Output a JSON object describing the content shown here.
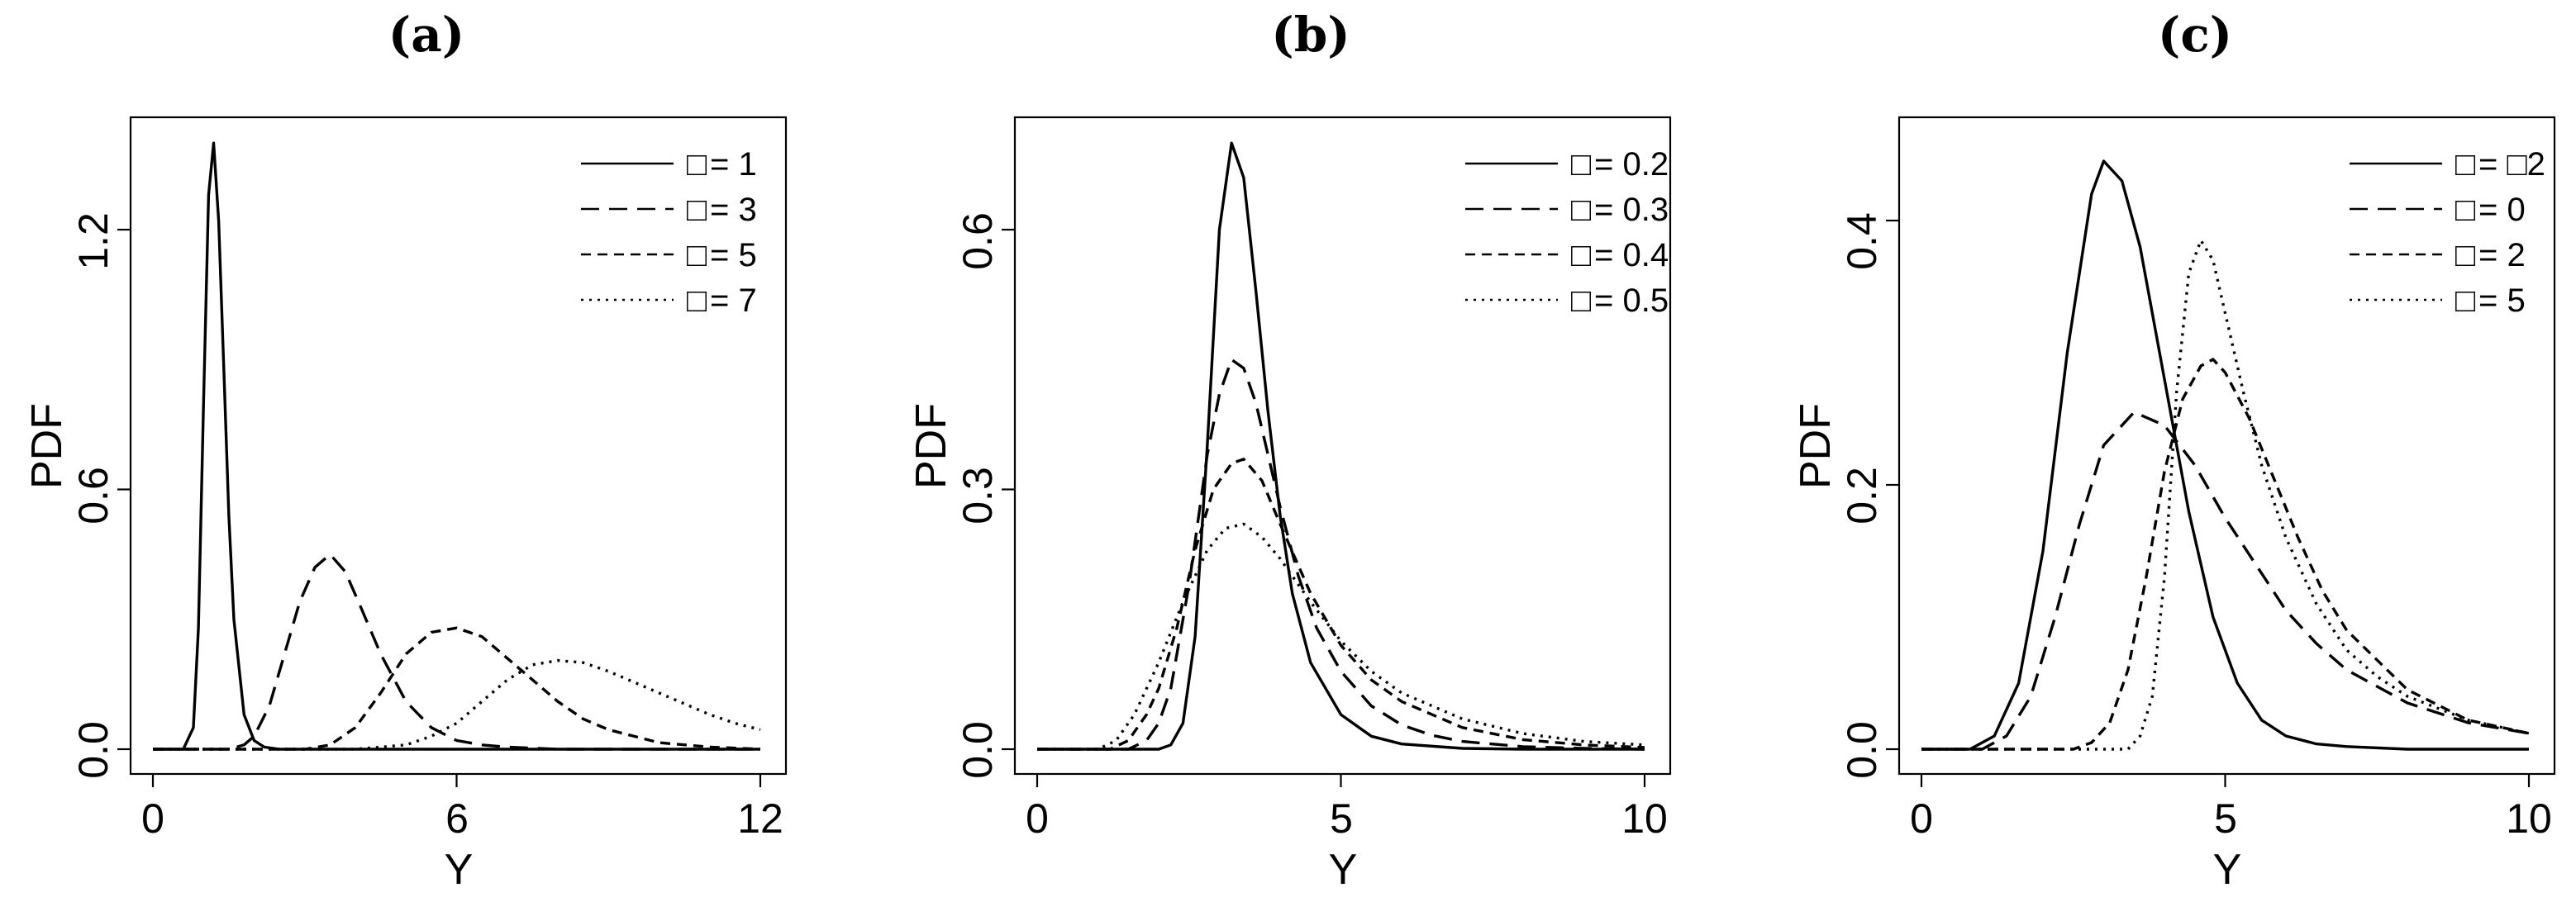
{
  "chart_data": [
    {
      "type": "line",
      "panel_label": "(a)",
      "xlabel": "Y",
      "ylabel": "PDF",
      "xlim": [
        0,
        12
      ],
      "ylim": [
        0,
        1.45
      ],
      "xticks": [
        "0",
        "6",
        "12"
      ],
      "yticks": [
        "0.0",
        "0.6",
        "1.2"
      ],
      "legend_position": "top-right",
      "series": [
        {
          "name": "= 1",
          "symbol": "□",
          "style": "solid",
          "x": [
            0,
            0.6,
            0.8,
            0.9,
            1.0,
            1.1,
            1.2,
            1.3,
            1.4,
            1.5,
            1.6,
            1.8,
            2.0,
            2.2,
            2.5,
            3.0,
            12
          ],
          "y": [
            0,
            0,
            0.05,
            0.28,
            0.8,
            1.28,
            1.4,
            1.22,
            0.88,
            0.54,
            0.3,
            0.08,
            0.02,
            0.005,
            0,
            0,
            0
          ]
        },
        {
          "name": "= 3",
          "symbol": "□",
          "style": "dashed",
          "x": [
            0,
            1.5,
            1.8,
            2.0,
            2.3,
            2.6,
            2.9,
            3.2,
            3.5,
            3.8,
            4.1,
            4.5,
            5.0,
            5.5,
            6.0,
            6.5,
            7.0,
            8.0,
            12
          ],
          "y": [
            0,
            0,
            0.01,
            0.03,
            0.1,
            0.22,
            0.34,
            0.42,
            0.45,
            0.41,
            0.33,
            0.22,
            0.11,
            0.05,
            0.02,
            0.01,
            0.005,
            0,
            0
          ]
        },
        {
          "name": "= 5",
          "symbol": "□",
          "style": "dashed",
          "x": [
            0,
            3.0,
            3.5,
            4.0,
            4.5,
            5.0,
            5.5,
            6.0,
            6.5,
            7.0,
            7.5,
            8.0,
            8.5,
            9.0,
            10.0,
            11.0,
            12
          ],
          "y": [
            0,
            0,
            0.01,
            0.05,
            0.13,
            0.22,
            0.27,
            0.28,
            0.26,
            0.21,
            0.16,
            0.11,
            0.07,
            0.045,
            0.015,
            0.005,
            0
          ]
        },
        {
          "name": "= 7",
          "symbol": "□",
          "style": "dotted",
          "x": [
            0,
            4.0,
            5.0,
            5.5,
            6.0,
            6.5,
            7.0,
            7.5,
            8.0,
            8.5,
            9.0,
            9.5,
            10.0,
            10.5,
            11.0,
            11.5,
            12
          ],
          "y": [
            0,
            0,
            0.01,
            0.03,
            0.06,
            0.11,
            0.16,
            0.195,
            0.205,
            0.2,
            0.18,
            0.155,
            0.13,
            0.105,
            0.08,
            0.06,
            0.045
          ]
        }
      ]
    },
    {
      "type": "line",
      "panel_label": "(b)",
      "xlabel": "Y",
      "ylabel": "PDF",
      "xlim": [
        0,
        10
      ],
      "ylim": [
        0,
        0.725
      ],
      "xticks": [
        "0",
        "5",
        "10"
      ],
      "yticks": [
        "0.0",
        "0.3",
        "0.6"
      ],
      "legend_position": "top-right",
      "series": [
        {
          "name": "= 0.2",
          "symbol": "□",
          "style": "solid",
          "x": [
            0,
            2.0,
            2.2,
            2.4,
            2.6,
            2.8,
            3.0,
            3.2,
            3.4,
            3.6,
            3.8,
            4.0,
            4.2,
            4.5,
            5.0,
            5.5,
            6.0,
            7.0,
            8.0,
            10
          ],
          "y": [
            0,
            0,
            0.005,
            0.03,
            0.13,
            0.35,
            0.6,
            0.7,
            0.66,
            0.53,
            0.39,
            0.27,
            0.18,
            0.1,
            0.04,
            0.015,
            0.006,
            0.001,
            0,
            0
          ]
        },
        {
          "name": "= 0.3",
          "symbol": "□",
          "style": "dashed",
          "x": [
            0,
            1.5,
            1.8,
            2.0,
            2.2,
            2.5,
            2.8,
            3.0,
            3.2,
            3.4,
            3.6,
            3.8,
            4.0,
            4.3,
            4.6,
            5.0,
            5.5,
            6.0,
            6.5,
            7.0,
            8.0,
            9.0,
            10
          ],
          "y": [
            0,
            0,
            0.01,
            0.03,
            0.07,
            0.19,
            0.34,
            0.41,
            0.45,
            0.44,
            0.4,
            0.34,
            0.28,
            0.2,
            0.14,
            0.09,
            0.05,
            0.028,
            0.016,
            0.009,
            0.003,
            0.001,
            0
          ]
        },
        {
          "name": "= 0.4",
          "symbol": "□",
          "style": "dashed",
          "x": [
            0,
            1.2,
            1.5,
            1.8,
            2.0,
            2.3,
            2.6,
            2.9,
            3.2,
            3.4,
            3.7,
            4.0,
            4.5,
            5.0,
            5.5,
            6.0,
            7.0,
            8.0,
            9.0,
            10
          ],
          "y": [
            0,
            0,
            0.01,
            0.04,
            0.07,
            0.14,
            0.23,
            0.3,
            0.33,
            0.335,
            0.31,
            0.26,
            0.18,
            0.12,
            0.08,
            0.055,
            0.025,
            0.011,
            0.005,
            0.002
          ]
        },
        {
          "name": "= 0.5",
          "symbol": "□",
          "style": "dotted",
          "x": [
            0,
            1.0,
            1.3,
            1.6,
            2.0,
            2.4,
            2.8,
            3.1,
            3.4,
            3.7,
            4.0,
            4.5,
            5.0,
            5.5,
            6.0,
            7.0,
            8.0,
            9.0,
            10
          ],
          "y": [
            0,
            0,
            0.01,
            0.04,
            0.1,
            0.17,
            0.23,
            0.255,
            0.26,
            0.245,
            0.22,
            0.17,
            0.125,
            0.09,
            0.065,
            0.035,
            0.018,
            0.009,
            0.005
          ]
        }
      ]
    },
    {
      "type": "line",
      "panel_label": "(c)",
      "xlabel": "Y",
      "ylabel": "PDF",
      "xlim": [
        0,
        10
      ],
      "ylim": [
        0,
        0.475
      ],
      "xticks": [
        "0",
        "5",
        "10"
      ],
      "yticks": [
        "0.0",
        "0.2",
        "0.4"
      ],
      "legend_position": "top-right",
      "series": [
        {
          "name": "= □2",
          "symbol": "□",
          "style": "solid",
          "x": [
            0,
            0.8,
            1.2,
            1.6,
            2.0,
            2.4,
            2.8,
            3.0,
            3.3,
            3.6,
            4.0,
            4.4,
            4.8,
            5.2,
            5.6,
            6.0,
            6.5,
            7.0,
            8.0,
            10
          ],
          "y": [
            0,
            0,
            0.01,
            0.05,
            0.15,
            0.3,
            0.42,
            0.445,
            0.43,
            0.38,
            0.28,
            0.18,
            0.1,
            0.05,
            0.022,
            0.01,
            0.004,
            0.002,
            0,
            0
          ]
        },
        {
          "name": "= 0",
          "symbol": "□",
          "style": "dashed",
          "x": [
            0,
            1.0,
            1.4,
            1.8,
            2.2,
            2.6,
            3.0,
            3.5,
            4.0,
            4.5,
            5.0,
            5.5,
            6.0,
            6.5,
            7.0,
            8.0,
            9.0,
            10
          ],
          "y": [
            0,
            0,
            0.01,
            0.04,
            0.1,
            0.17,
            0.23,
            0.255,
            0.245,
            0.215,
            0.175,
            0.14,
            0.105,
            0.08,
            0.06,
            0.035,
            0.02,
            0.012
          ]
        },
        {
          "name": "= 2",
          "symbol": "□",
          "style": "dashed",
          "x": [
            0,
            2.5,
            2.8,
            3.1,
            3.4,
            3.7,
            4.0,
            4.3,
            4.6,
            4.8,
            5.0,
            5.4,
            5.8,
            6.2,
            6.6,
            7.0,
            8.0,
            9.0,
            10
          ],
          "y": [
            0,
            0,
            0.005,
            0.02,
            0.06,
            0.13,
            0.21,
            0.265,
            0.29,
            0.295,
            0.285,
            0.25,
            0.205,
            0.16,
            0.12,
            0.09,
            0.045,
            0.022,
            0.012
          ]
        },
        {
          "name": "= 5",
          "symbol": "□",
          "style": "dotted",
          "x": [
            0,
            3.4,
            3.6,
            3.8,
            4.0,
            4.2,
            4.4,
            4.6,
            4.8,
            5.0,
            5.3,
            5.6,
            6.0,
            6.5,
            7.0,
            7.5,
            8.0,
            9.0,
            10
          ],
          "y": [
            0,
            0,
            0.01,
            0.04,
            0.13,
            0.27,
            0.36,
            0.385,
            0.37,
            0.33,
            0.27,
            0.215,
            0.16,
            0.11,
            0.075,
            0.055,
            0.04,
            0.022,
            0.012
          ]
        }
      ]
    }
  ]
}
